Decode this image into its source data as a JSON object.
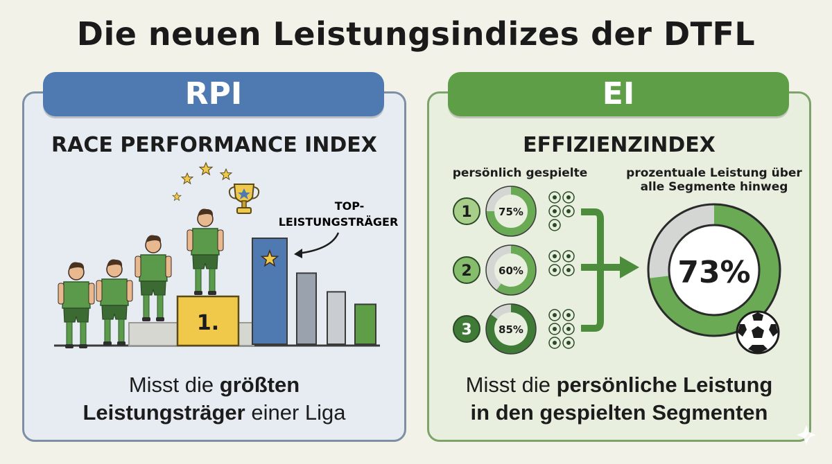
{
  "title": "Die neuen Leistungsindizes der DTFL",
  "left": {
    "banner": "RPI",
    "subtitle": "RACE PERFORMANCE INDEX",
    "annotation_line1": "TOP-",
    "annotation_line2": "LEISTUNGSTRÄGER",
    "podium_label": "1.",
    "desc_pre": "Misst die ",
    "desc_bold1": "größten",
    "desc_bold2": "Leistungsträger",
    "desc_post": " einer Liga",
    "bar_levels": [
      0.85,
      0.57,
      0.42,
      0.32
    ],
    "colors": {
      "banner": "#4f79b1",
      "bar_main": "#4f79b1",
      "bar_gray": "#9aa3ad",
      "bar_green": "#5d9e47",
      "podium": "#f0c94a"
    }
  },
  "right": {
    "banner": "EI",
    "subtitle": "EFFIZIENZINDEX",
    "left_label": "persönlich gespielte",
    "right_label_line1": "prozentuale Leistung über",
    "right_label_line2": "alle Segmente hinweg",
    "segments": [
      {
        "number": "1",
        "percent_label": "75%",
        "fraction": 0.75
      },
      {
        "number": "2",
        "percent_label": "60%",
        "fraction": 0.6
      },
      {
        "number": "3",
        "percent_label": "85%",
        "fraction": 0.85
      }
    ],
    "total_label": "73%",
    "total_fraction": 0.73,
    "desc_pre": "Misst die ",
    "desc_bold1": "persönliche Leistung",
    "desc_bold2": "in den gespielten Segmenten",
    "colors": {
      "banner": "#5d9e47",
      "ring": "#6aaa55",
      "ring_dark": "#3f7a36",
      "ring_bg": "#d3d6d2"
    }
  }
}
